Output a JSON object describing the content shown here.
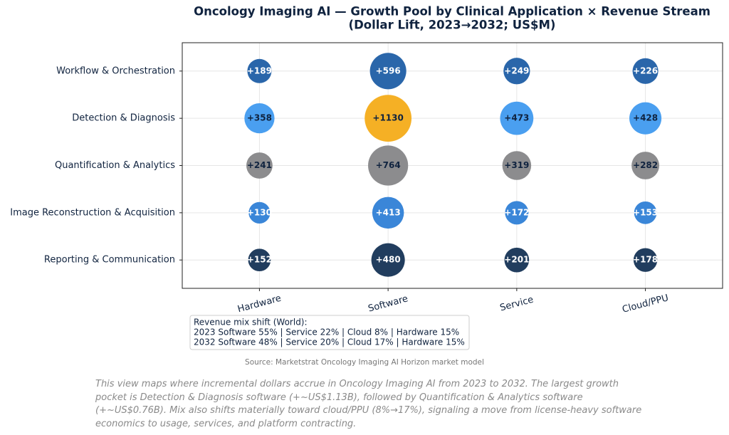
{
  "chart_data": {
    "type": "bubble",
    "title": [
      "Oncology Imaging AI — Growth Pool by Clinical Application × Revenue Stream",
      "(Dollar Lift, 2023→2032; US$M)"
    ],
    "categories": [
      "Hardware",
      "Software",
      "Service",
      "Cloud/PPU"
    ],
    "series": [
      {
        "name": "Workflow & Orchestration",
        "colors": [
          "#2a66aa",
          "#2a66aa",
          "#2a66aa",
          "#2a66aa"
        ],
        "label_color": "#ffffff",
        "values": [
          189,
          596,
          249,
          226
        ],
        "value_labels": [
          "+189",
          "+596",
          "+249",
          "+226"
        ]
      },
      {
        "name": "Detection & Diagnosis",
        "colors": [
          "#4a9ff0",
          "#f5b025",
          "#4a9ff0",
          "#4a9ff0"
        ],
        "label_color": "#10233f",
        "values": [
          358,
          1130,
          473,
          428
        ],
        "value_labels": [
          "+358",
          "+1130",
          "+473",
          "+428"
        ]
      },
      {
        "name": "Quantification & Analytics",
        "colors": [
          "#8c8c8e",
          "#8c8c8e",
          "#8c8c8e",
          "#8c8c8e"
        ],
        "label_color": "#10233f",
        "values": [
          241,
          764,
          319,
          282
        ],
        "value_labels": [
          "+241",
          "+764",
          "+319",
          "+282"
        ]
      },
      {
        "name": "Image Reconstruction & Acquisition",
        "colors": [
          "#3a86d8",
          "#3a86d8",
          "#3a86d8",
          "#3a86d8"
        ],
        "label_color": "#ffffff",
        "values": [
          130,
          413,
          172,
          153
        ],
        "value_labels": [
          "+130",
          "+413",
          "+172",
          "+153"
        ]
      },
      {
        "name": "Reporting & Communication",
        "colors": [
          "#213d5e",
          "#213d5e",
          "#213d5e",
          "#213d5e"
        ],
        "label_color": "#ffffff",
        "values": [
          152,
          480,
          201,
          178
        ],
        "value_labels": [
          "+152",
          "+480",
          "+201",
          "+178"
        ]
      }
    ],
    "grid": true,
    "annotation": [
      "Revenue mix shift (World):",
      "2023  Software 55% | Service 22% | Cloud 8% | Hardware 15%",
      "2032  Software 48% | Service 20% | Cloud 17% | Hardware 15%"
    ],
    "source": "Source: Marketstrat Oncology Imaging AI Horizon market model",
    "caption": "This view maps where incremental dollars accrue in Oncology Imaging AI from 2023 to 2032. The largest growth pocket is Detection & Diagnosis software (+~US$1.13B), followed by Quantification & Analytics software (+~US$0.76B). Mix also shifts materially toward cloud/PPU (8%→17%), signaling a move from license-heavy software economics to usage, services, and platform contracting."
  }
}
